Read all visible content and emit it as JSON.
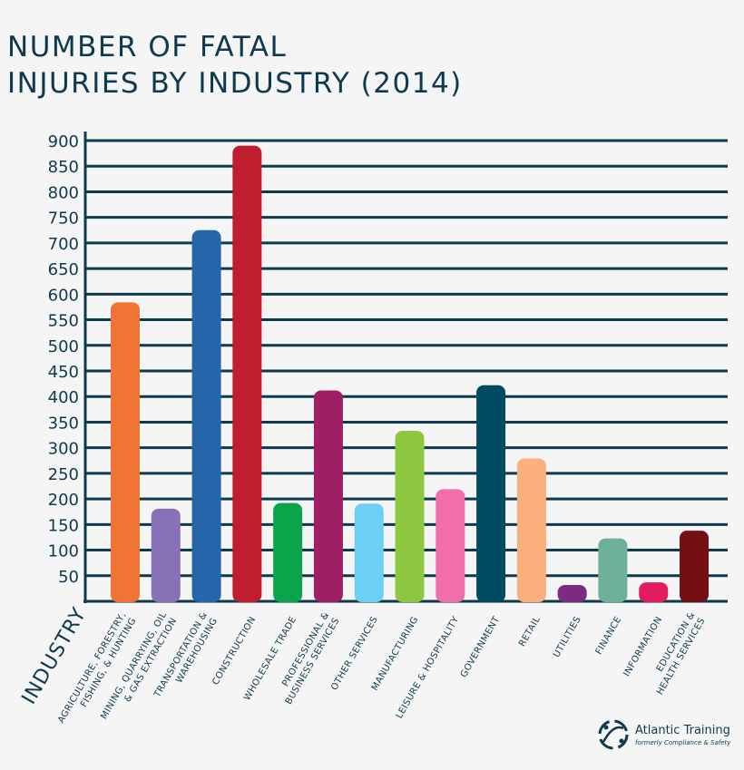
{
  "chart_data": {
    "type": "bar",
    "title_lines": [
      "NUMBER OF FATAL",
      "INJURIES BY INDUSTRY (2014)"
    ],
    "xlabel": "INDUSTRY",
    "ylabel": "",
    "ylim": [
      0,
      900
    ],
    "yticks": [
      50,
      100,
      150,
      200,
      250,
      300,
      350,
      400,
      450,
      500,
      550,
      600,
      650,
      700,
      750,
      800,
      850,
      900
    ],
    "grid": true,
    "categories": [
      [
        "AGRICULTURE, FORESTRY,",
        "FISHING, & HUNTING"
      ],
      [
        "MINING, QUARRYING, OIL",
        "& GAS EXTRACTION"
      ],
      [
        "TRANSPORTATION &",
        "WAREHOUSING"
      ],
      [
        "CONSTRUCTION"
      ],
      [
        "WHOLESALE TRADE"
      ],
      [
        "PROFESSIONAL &",
        "BUSINESS SERVICES"
      ],
      [
        "OTHER SERVICES"
      ],
      [
        "MANUFACTURING"
      ],
      [
        "LEISURE & HOSPITALITY"
      ],
      [
        "GOVERNMENT"
      ],
      [
        "RETAIL"
      ],
      [
        "UTILITIES"
      ],
      [
        "FINANCE"
      ],
      [
        "INFORMATION"
      ],
      [
        "EDUCATION &",
        "HEALTH SERVICES"
      ]
    ],
    "values": [
      584,
      181,
      725,
      890,
      192,
      412,
      191,
      333,
      219,
      422,
      279,
      32,
      123,
      37,
      138
    ],
    "colors": [
      "#f07535",
      "#8772b8",
      "#2566aa",
      "#be1e2d",
      "#0aa54a",
      "#9e1f63",
      "#6dcff6",
      "#8dc63f",
      "#f06ea9",
      "#004b63",
      "#fbb07d",
      "#7b2c80",
      "#6db298",
      "#e31b5e",
      "#750f14"
    ]
  },
  "logo": {
    "name": "Atlantic Training",
    "subtitle": "formerly Compliance & Safety"
  }
}
